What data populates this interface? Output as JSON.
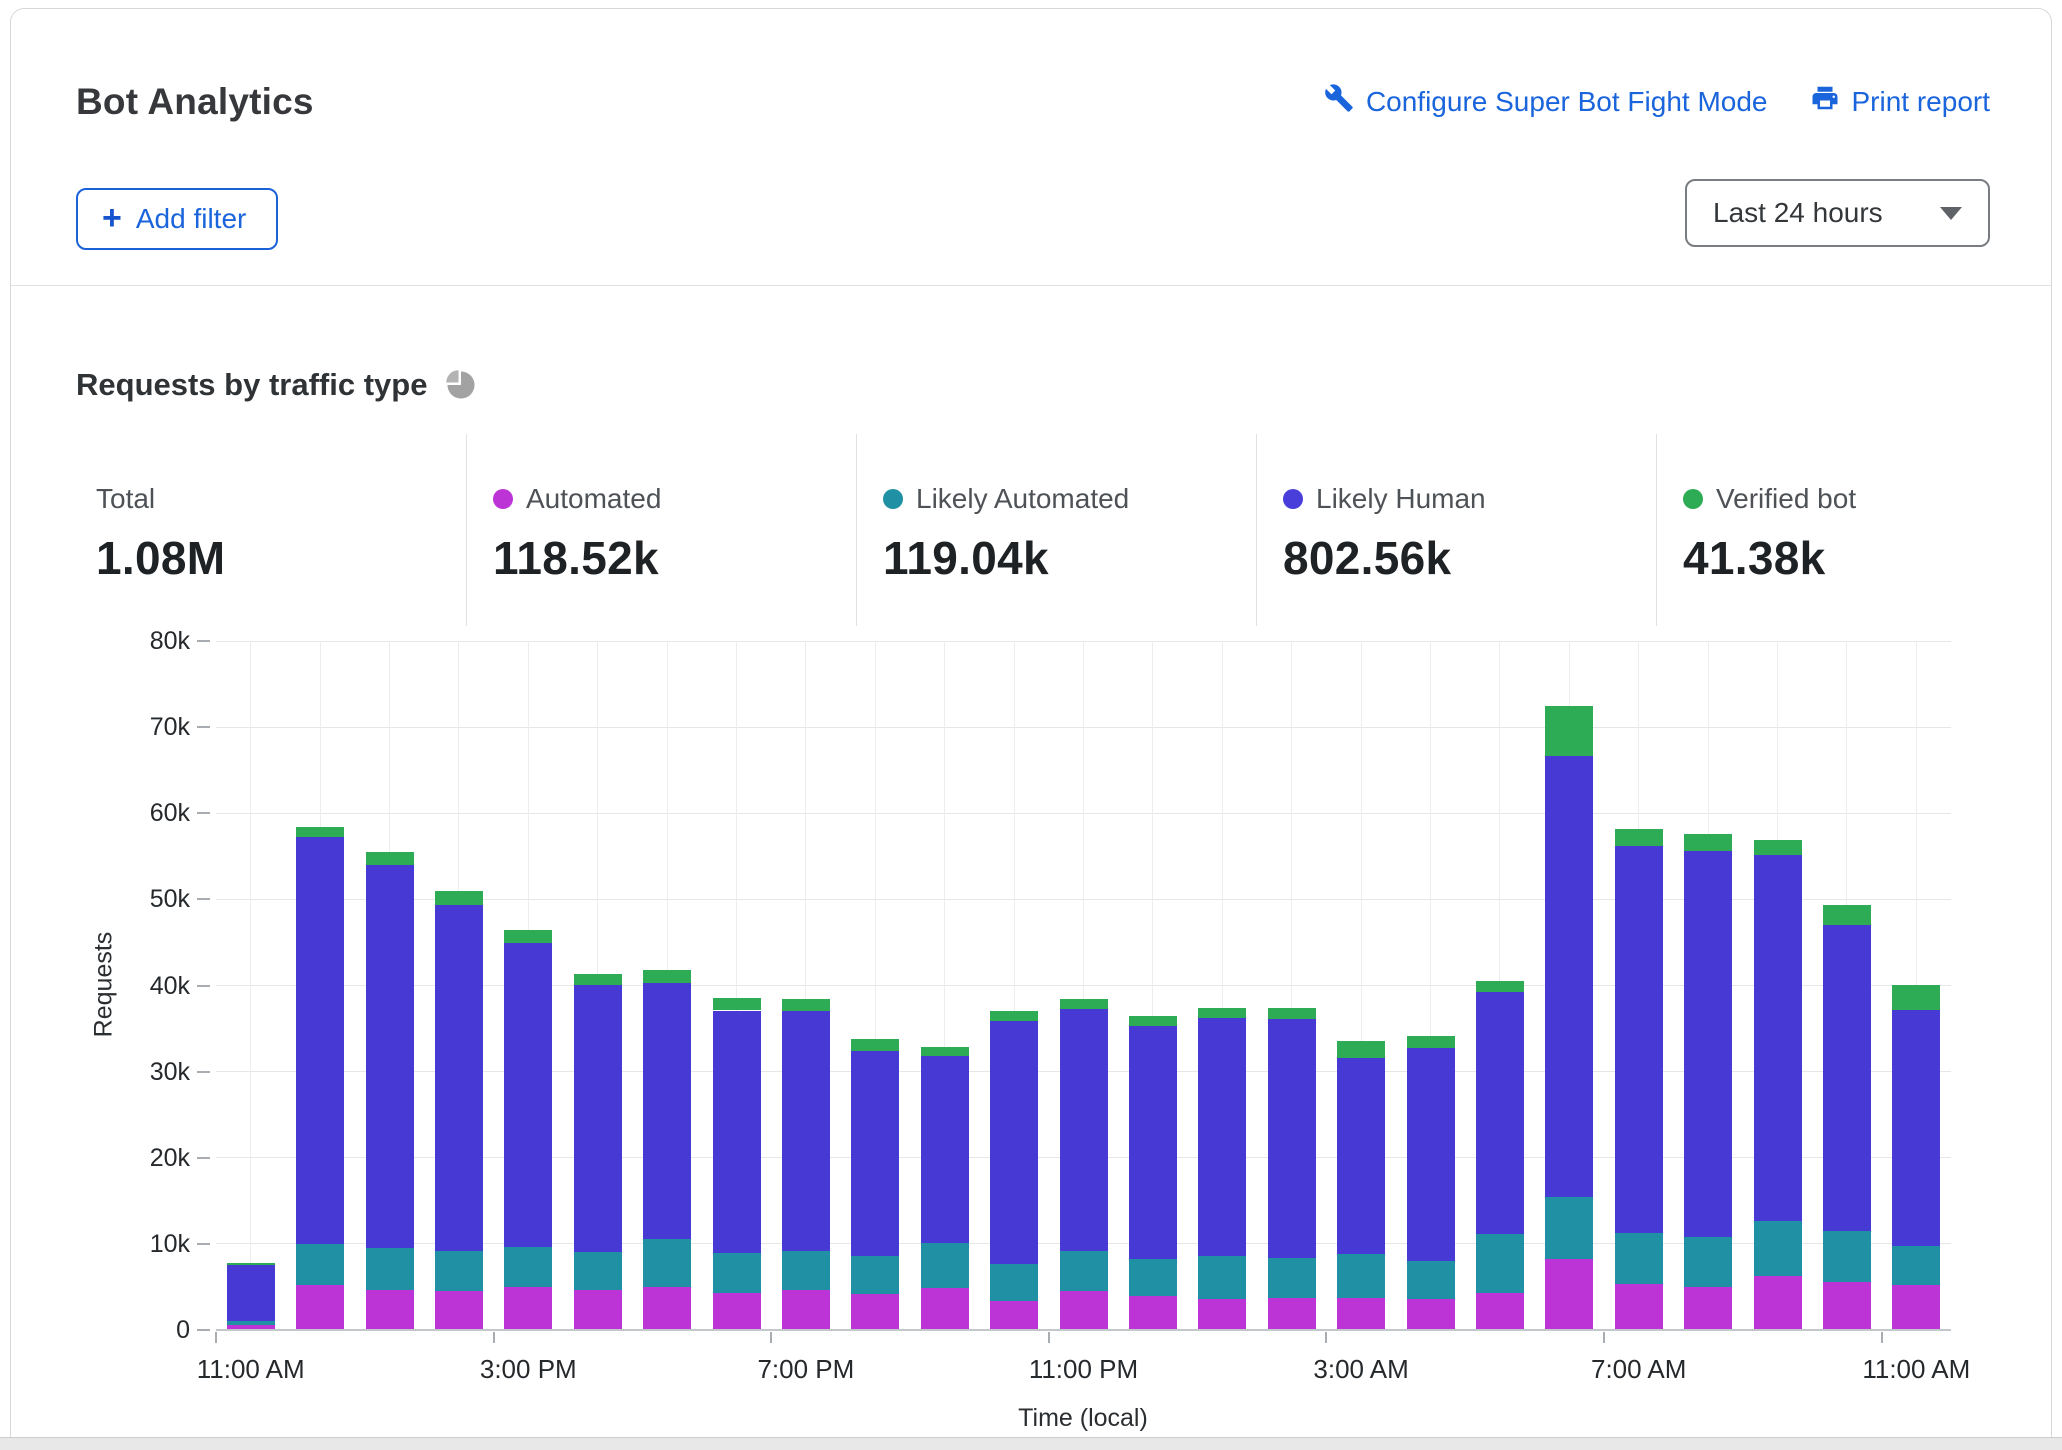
{
  "header": {
    "title": "Bot Analytics",
    "actions": [
      {
        "label": "Configure Super Bot Fight Mode",
        "icon": "wrench-icon"
      },
      {
        "label": "Print report",
        "icon": "printer-icon"
      }
    ],
    "add_filter": {
      "plus": "+",
      "label": "Add filter"
    },
    "time_range": {
      "value": "Last 24 hours"
    }
  },
  "section": {
    "title": "Requests by traffic type"
  },
  "stats": [
    {
      "label": "Total",
      "value": "1.08M",
      "color": null
    },
    {
      "label": "Automated",
      "value": "118.52k",
      "color": "#bc34d5"
    },
    {
      "label": "Likely Automated",
      "value": "119.04k",
      "color": "#2090a4"
    },
    {
      "label": "Likely Human",
      "value": "802.56k",
      "color": "#4a3edb"
    },
    {
      "label": "Verified bot",
      "value": "41.38k",
      "color": "#2dab55"
    }
  ],
  "chart_data": {
    "type": "bar",
    "stacked": true,
    "title": "Requests by traffic type",
    "xlabel": "Time (local)",
    "ylabel": "Requests",
    "unit": "thousands of requests",
    "ylim": [
      0,
      80
    ],
    "yticks": [
      "0",
      "10k",
      "20k",
      "30k",
      "40k",
      "50k",
      "60k",
      "70k",
      "80k"
    ],
    "grid": true,
    "legend_position": "top stat cards",
    "x": [
      "11:00 AM",
      "12:00 PM",
      "1:00 PM",
      "2:00 PM",
      "3:00 PM",
      "4:00 PM",
      "5:00 PM",
      "6:00 PM",
      "7:00 PM",
      "8:00 PM",
      "9:00 PM",
      "10:00 PM",
      "11:00 PM",
      "12:00 AM",
      "1:00 AM",
      "2:00 AM",
      "3:00 AM",
      "4:00 AM",
      "5:00 AM",
      "6:00 AM",
      "7:00 AM",
      "8:00 AM",
      "9:00 AM",
      "10:00 AM",
      "11:00 AM"
    ],
    "xtick_indices": [
      0,
      4,
      8,
      12,
      16,
      20,
      24
    ],
    "series": [
      {
        "name": "Automated",
        "color": "#bc34d5",
        "values": [
          0.6,
          5.2,
          4.6,
          4.5,
          5.0,
          4.7,
          5.0,
          4.3,
          4.7,
          4.2,
          4.9,
          3.4,
          4.5,
          3.9,
          3.6,
          3.7,
          3.7,
          3.6,
          4.3,
          8.3,
          5.3,
          5.0,
          6.3,
          5.6,
          5.2
        ]
      },
      {
        "name": "Likely Automated",
        "color": "#2090a4",
        "values": [
          0.4,
          4.8,
          4.9,
          4.7,
          4.6,
          4.4,
          5.6,
          4.6,
          4.5,
          4.4,
          5.2,
          4.3,
          4.7,
          4.3,
          5.0,
          4.7,
          5.1,
          4.4,
          6.9,
          7.2,
          6.0,
          5.8,
          6.4,
          5.9,
          4.6
        ]
      },
      {
        "name": "Likely Human",
        "color": "#4639d4",
        "values": [
          6.5,
          47.3,
          44.5,
          40.1,
          35.3,
          31.0,
          29.7,
          28.2,
          27.8,
          23.8,
          21.7,
          28.2,
          28.1,
          27.1,
          27.6,
          27.7,
          22.8,
          24.8,
          28.1,
          51.2,
          44.9,
          44.8,
          42.5,
          35.5,
          27.4
        ]
      },
      {
        "name": "Verified bot",
        "color": "#2dab55",
        "values": [
          0.3,
          1.1,
          1.5,
          1.7,
          1.5,
          1.2,
          1.5,
          1.4,
          1.4,
          1.4,
          1.1,
          1.1,
          1.1,
          1.2,
          1.2,
          1.3,
          2.0,
          1.3,
          1.2,
          5.8,
          2.0,
          2.0,
          1.7,
          2.4,
          2.9
        ]
      }
    ]
  }
}
